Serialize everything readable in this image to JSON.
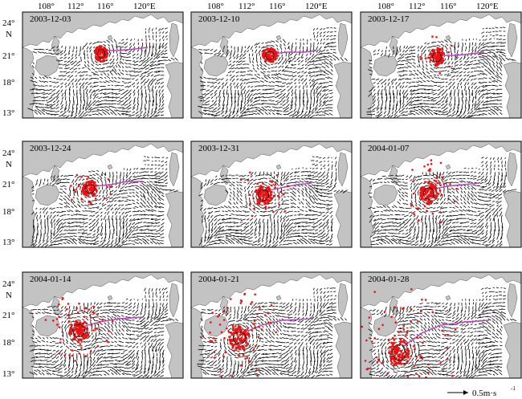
{
  "figure": {
    "top_longitude_labels": [
      "108°",
      "112°",
      "116°",
      "120°E"
    ],
    "latitude_labels": [
      "24°",
      "N",
      "21°",
      "18°",
      "13°"
    ],
    "panels": [
      {
        "date": "2003-12-03"
      },
      {
        "date": "2003-12-10"
      },
      {
        "date": "2003-12-17"
      },
      {
        "date": "2003-12-24"
      },
      {
        "date": "2003-12-31"
      },
      {
        "date": "2004-01-07"
      },
      {
        "date": "2004-01-14"
      },
      {
        "date": "2004-01-21"
      },
      {
        "date": "2004-01-28"
      }
    ],
    "scale_label": "0.5m·s",
    "scale_superscript": "-1",
    "colors": {
      "land": "#c3c3c3",
      "ocean": "#ffffff",
      "vectors": "#000000",
      "drifters": "#ee1111",
      "track": "#c040c0"
    }
  }
}
